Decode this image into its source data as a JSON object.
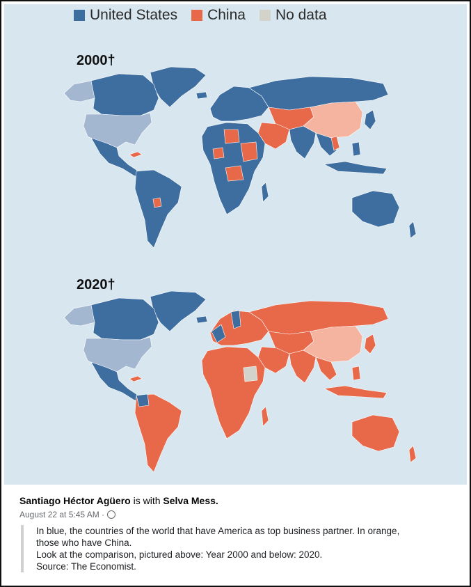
{
  "legend": {
    "items": [
      {
        "label": "United States",
        "color": "#3d6e9f"
      },
      {
        "label": "China",
        "color": "#e8684a"
      },
      {
        "label": "No data",
        "color": "#d3d3cc"
      }
    ]
  },
  "maps": [
    {
      "year_label": "2000†"
    },
    {
      "year_label": "2020†"
    }
  ],
  "colors": {
    "us": "#3d6e9f",
    "us_self": "#a3b7d1",
    "china": "#e8684a",
    "china_self": "#f5b4a0",
    "no_data": "#d3d3cc",
    "ocean": "#d8e7ef"
  },
  "post": {
    "author": "Santiago Héctor Agüero",
    "with_text": "is with",
    "tagged": "Selva Mess.",
    "timestamp": "August 22 at 5:45 AM ·",
    "lines": [
      "In blue, the countries of the world that have America as top business partner. In orange,",
      "those who have China.",
      "Look at the comparison, pictured above: Year 2000 and below: 2020.",
      "Source: The Economist."
    ]
  }
}
